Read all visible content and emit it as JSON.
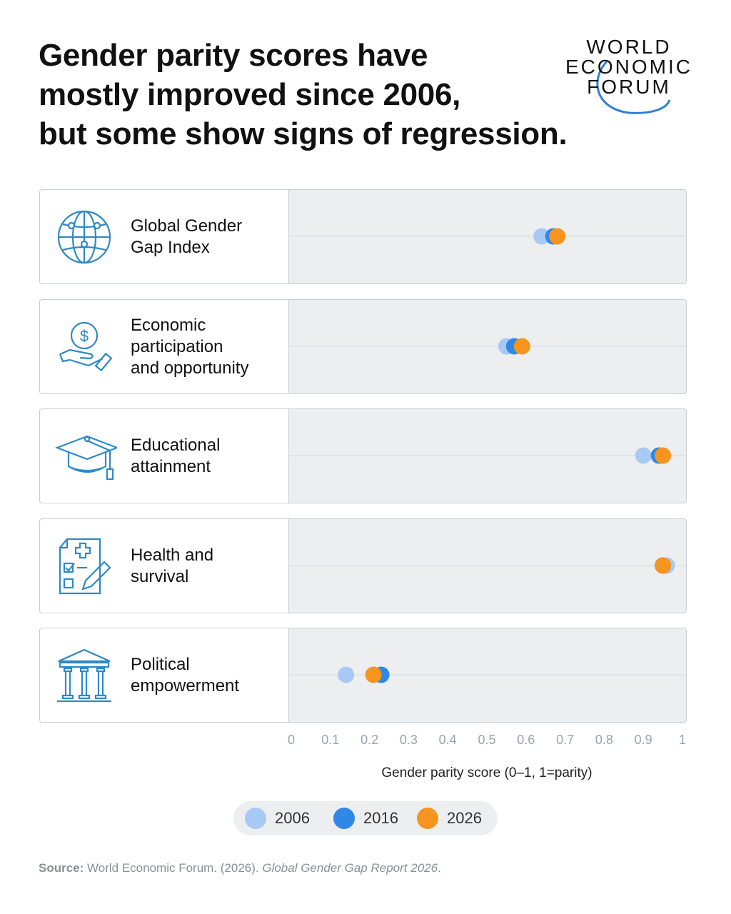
{
  "header": {
    "title_lines": [
      "Gender parity scores have",
      "mostly improved since 2006,",
      "but some show signs of regression."
    ]
  },
  "logo": {
    "lines": [
      "WORLD",
      "ECONOMIC",
      "FORUM"
    ],
    "accent": "#2f7fd6"
  },
  "colors": {
    "y2006": "#a9c9f5",
    "y2016": "#2f88e6",
    "y2026": "#f7941d",
    "panel": "#eceef0",
    "icon": "#2d8ac5"
  },
  "chart_data": {
    "type": "scatter",
    "categories": [
      "Global Gender Gap Index",
      "Economic participation and opportunity",
      "Educational attainment",
      "Health and survival",
      "Political empowerment"
    ],
    "category_labels": [
      [
        "Global Gender",
        "Gap Index"
      ],
      [
        "Economic",
        "participation",
        "and opportunity"
      ],
      [
        "Educational",
        "attainment"
      ],
      [
        "Health and",
        "survival"
      ],
      [
        "Political",
        "empowerment"
      ]
    ],
    "icons": [
      "globe-icon",
      "money-hand-icon",
      "graduation-cap-icon",
      "health-checklist-icon",
      "government-building-icon"
    ],
    "series": [
      {
        "name": "2006",
        "values": [
          0.64,
          0.55,
          0.9,
          0.96,
          0.14
        ]
      },
      {
        "name": "2016",
        "values": [
          0.67,
          0.57,
          0.94,
          0.95,
          0.23
        ]
      },
      {
        "name": "2026",
        "values": [
          0.68,
          0.59,
          0.95,
          0.95,
          0.21
        ]
      }
    ],
    "xlim": [
      0,
      1
    ],
    "xticks": [
      "0",
      "0.1",
      "0.2",
      "0.3",
      "0.4",
      "0.5",
      "0.6",
      "0.7",
      "0.8",
      "0.9",
      "1"
    ],
    "xlabel": "Gender parity score (0–1, 1=parity)",
    "legend": "bottom-center"
  },
  "source": {
    "label": "Source:",
    "text": " World Economic Forum. (2026). ",
    "italic": "Global Gender Gap Report 2026",
    "end": "."
  }
}
